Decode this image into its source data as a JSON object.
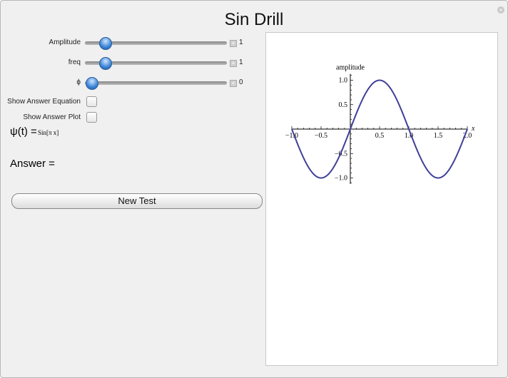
{
  "title": "Sin Drill",
  "controls": {
    "sliders": [
      {
        "label": "Amplitude",
        "value": "1"
      },
      {
        "label": "freq",
        "value": "1"
      },
      {
        "label": "ϕ",
        "value": "0"
      }
    ],
    "checkboxes": [
      {
        "label": "Show Answer Equation",
        "checked": false
      },
      {
        "label": "Show Answer Plot",
        "checked": false
      }
    ],
    "equation_lhs": "ψ(t) =",
    "equation_rhs": "Sin[π x]",
    "answer_label": "Answer =",
    "new_test_label": "New Test"
  },
  "chart_data": {
    "type": "line",
    "function": "Sin[π x]",
    "xlabel": "x",
    "ylabel": "amplitude",
    "xlim": [
      -1,
      2
    ],
    "ylim": [
      -1,
      1
    ],
    "xticks": [
      "−1.0",
      "−0.5",
      "0.5",
      "1.0",
      "1.5",
      "2.0"
    ],
    "yticks": [
      "1.0",
      "0.5",
      "−0.5",
      "−1.0"
    ],
    "color": "#3f3f97"
  }
}
